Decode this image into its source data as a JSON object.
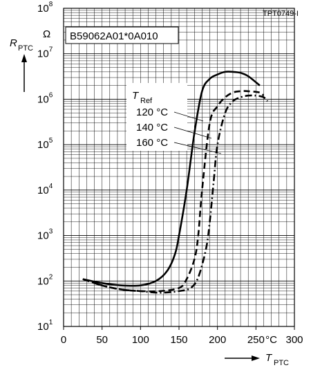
{
  "chart_data": {
    "type": "line",
    "scale": "log",
    "corner_tag": "TPT0749-I",
    "part_number": "B59062A01*0A010",
    "y_axis": {
      "symbol": "R",
      "subscript": "PTC",
      "unit": "Ω",
      "log_scale": true,
      "ylim": [
        10,
        100000000
      ],
      "ticks": [
        {
          "base": "10",
          "exp": "1"
        },
        {
          "base": "10",
          "exp": "2"
        },
        {
          "base": "10",
          "exp": "3"
        },
        {
          "base": "10",
          "exp": "4"
        },
        {
          "base": "10",
          "exp": "5"
        },
        {
          "base": "10",
          "exp": "6"
        },
        {
          "base": "10",
          "exp": "7"
        },
        {
          "base": "10",
          "exp": "8"
        }
      ]
    },
    "x_axis": {
      "symbol": "T",
      "subscript": "PTC",
      "unit": "°C",
      "xlim": [
        0,
        300
      ],
      "ticks": [
        "0",
        "50",
        "100",
        "150",
        "200",
        "250",
        "300"
      ]
    },
    "grid": true,
    "legend": {
      "header_symbol": "T",
      "header_subscript": "Ref",
      "entries": [
        "120 °C",
        "140 °C",
        "160 °C"
      ]
    },
    "series": [
      {
        "name": "120 °C",
        "style": "solid",
        "x": [
          25,
          50,
          75,
          100,
          120,
          135,
          145,
          150,
          160,
          170,
          180,
          190,
          200,
          210,
          220,
          230,
          240,
          255
        ],
        "y": [
          110,
          90,
          80,
          80,
          100,
          170,
          400,
          1000,
          10000,
          180000,
          1500000,
          2800000,
          3500000,
          4000000,
          4000000,
          3800000,
          3200000,
          2000000
        ]
      },
      {
        "name": "140 °C",
        "style": "dashed",
        "x": [
          25,
          50,
          75,
          100,
          125,
          150,
          160,
          170,
          175,
          180,
          190,
          200,
          210,
          220,
          230,
          240,
          255,
          260
        ],
        "y": [
          110,
          80,
          65,
          60,
          60,
          70,
          110,
          300,
          1000,
          10000,
          300000,
          700000,
          1100000,
          1400000,
          1500000,
          1500000,
          1400000,
          1200000
        ]
      },
      {
        "name": "160 °C",
        "style": "dash-dot",
        "x": [
          25,
          50,
          75,
          100,
          125,
          150,
          165,
          175,
          185,
          190,
          195,
          200,
          210,
          220,
          230,
          240,
          250,
          260,
          265
        ],
        "y": [
          110,
          80,
          65,
          60,
          55,
          60,
          70,
          120,
          500,
          2000,
          15000,
          100000,
          500000,
          900000,
          1100000,
          1200000,
          1200000,
          1100000,
          900000
        ]
      }
    ]
  }
}
